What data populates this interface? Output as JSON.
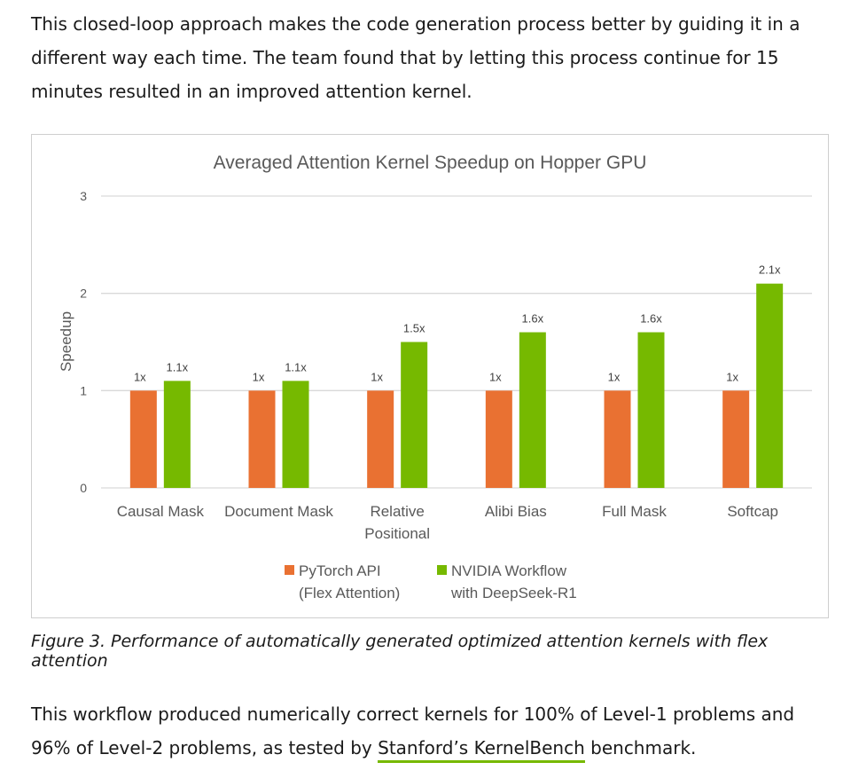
{
  "intro": {
    "line1": "This closed-loop approach makes the code generation process better by guiding it in a",
    "line2": "different way each time. The team found that by letting this process continue for 15",
    "line3": "minutes resulted in an improved attention kernel."
  },
  "chart_data": {
    "type": "bar",
    "title": "Averaged Attention Kernel Speedup on Hopper GPU",
    "xlabel": "",
    "ylabel": "Speedup",
    "ylim": [
      0,
      3
    ],
    "yticks": [
      "0",
      "1",
      "2",
      "3"
    ],
    "grid": true,
    "legend_position": "bottom-center",
    "categories": [
      [
        "Causal Mask"
      ],
      [
        "Document Mask"
      ],
      [
        "Relative",
        "Positional"
      ],
      [
        "Alibi Bias"
      ],
      [
        "Full Mask"
      ],
      [
        "Softcap"
      ]
    ],
    "series": [
      {
        "name": [
          "PyTorch API",
          "(Flex Attention)"
        ],
        "color": "#e97132",
        "values": [
          1,
          1,
          1,
          1,
          1,
          1
        ],
        "labels": [
          "1x",
          "1x",
          "1x",
          "1x",
          "1x",
          "1x"
        ]
      },
      {
        "name": [
          "NVIDIA Workflow",
          "with DeepSeek-R1"
        ],
        "color": "#76b900",
        "values": [
          1.1,
          1.1,
          1.5,
          1.6,
          1.6,
          2.1
        ],
        "labels": [
          "1.1x",
          "1.1x",
          "1.5x",
          "1.6x",
          "1.6x",
          "2.1x"
        ]
      }
    ]
  },
  "caption": "Figure 3. Performance of automatically generated optimized attention kernels with flex attention",
  "outro": {
    "line1": "This workflow produced numerically correct kernels for 100% of Level-1 problems and",
    "line2_prefix": "96% of Level-2 problems, as tested by ",
    "link_text": "Stanford’s KernelBench",
    "line2_suffix": " benchmark."
  }
}
